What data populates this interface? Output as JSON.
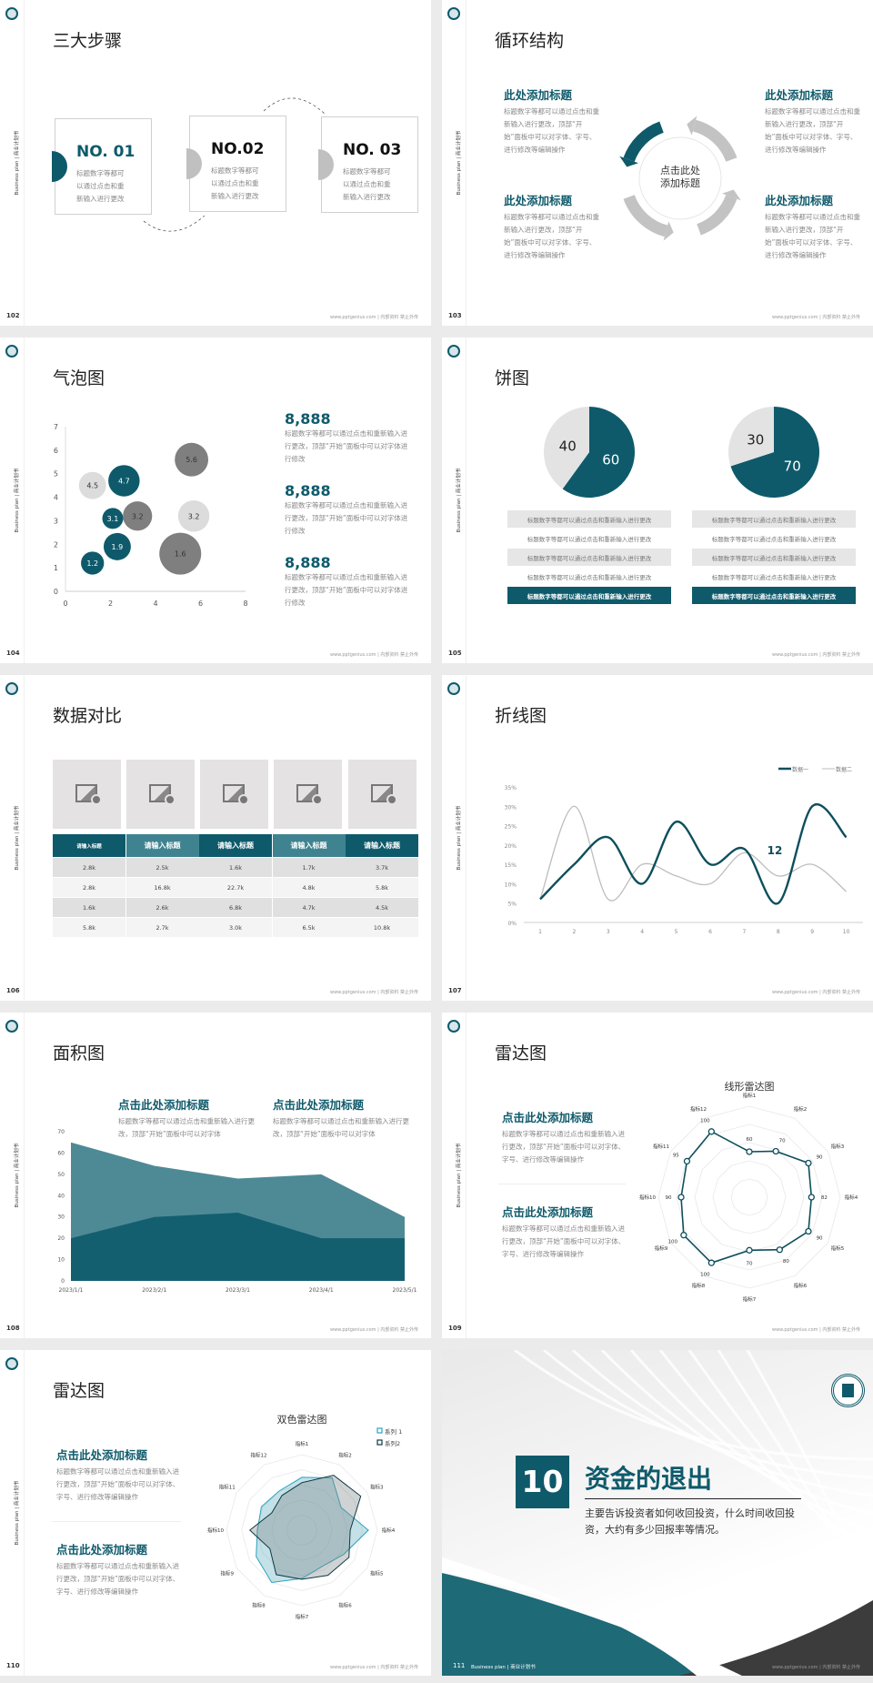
{
  "common": {
    "sidebar_text": "Business plan | 商业计划书",
    "footer": "www.pptgenius.com | 内部资料 禁止外传",
    "colors": {
      "teal": "#0e5a6b",
      "teal_light": "#4e8a96",
      "gray_light": "#dcdcdc",
      "gray_dark": "#7f7f7f",
      "background": "#ebebeb"
    }
  },
  "slides": [
    {
      "type": "steps",
      "page": "102",
      "title": "三大步骤",
      "steps": [
        {
          "label": "NO. 01",
          "lines": [
            "标题数字等都可",
            "以通过点击和重",
            "新输入进行更改"
          ],
          "active": true
        },
        {
          "label": "NO.02",
          "lines": [
            "标题数字等都可",
            "以通过点击和重",
            "新输入进行更改"
          ],
          "active": false
        },
        {
          "label": "NO. 03",
          "lines": [
            "标题数字等都可",
            "以通过点击和重",
            "新输入进行更改"
          ],
          "active": false
        }
      ]
    },
    {
      "type": "cycle",
      "page": "103",
      "title": "循环结构",
      "center": [
        "点击此处",
        "添加标题"
      ],
      "blocks": [
        {
          "title": "此处添加标题",
          "text": "标题数字等都可以通过点击和重新输入进行更改，顶部“开始”面板中可以对字体、字号、进行修改等编辑操作"
        },
        {
          "title": "此处添加标题",
          "text": "标题数字等都可以通过点击和重新输入进行更改，顶部“开始”面板中可以对字体、字号、进行修改等编辑操作"
        },
        {
          "title": "此处添加标题",
          "text": "标题数字等都可以通过点击和重新输入进行更改，顶部“开始”面板中可以对字体、字号、进行修改等编辑操作"
        },
        {
          "title": "此处添加标题",
          "text": "标题数字等都可以通过点击和重新输入进行更改，顶部“开始”面板中可以对字体、字号、进行修改等编辑操作"
        }
      ]
    },
    {
      "type": "bubble",
      "page": "104",
      "title": "气泡图",
      "stats": [
        {
          "value": "8,888",
          "text": "标题数字等都可以通过点击和重新输入进行更改，顶部“开始”面板中可以对字体进行修改"
        },
        {
          "value": "8,888",
          "text": "标题数字等都可以通过点击和重新输入进行更改，顶部“开始”面板中可以对字体进行修改"
        },
        {
          "value": "8,888",
          "text": "标题数字等都可以通过点击和重新输入进行更改，顶部“开始”面板中可以对字体进行修改"
        }
      ]
    },
    {
      "type": "pie",
      "page": "105",
      "title": "饼图",
      "rows": [
        "标题数字等都可以通过点击和重新输入进行更改",
        "标题数字等都可以通过点击和重新输入进行更改",
        "标题数字等都可以通过点击和重新输入进行更改",
        "标题数字等都可以通过点击和重新输入进行更改",
        "标题数字等都可以通过点击和重新输入进行更改"
      ]
    },
    {
      "type": "table",
      "page": "106",
      "title": "数据对比",
      "headers": [
        "请输入标题",
        "请输入标题",
        "请输入标题",
        "请输入标题",
        "请输入标题"
      ],
      "rows": [
        [
          "2.8k",
          "2.5k",
          "1.6k",
          "1.7k",
          "3.7k"
        ],
        [
          "2.8k",
          "16.8k",
          "22.7k",
          "4.8k",
          "5.8k"
        ],
        [
          "1.6k",
          "2.6k",
          "6.8k",
          "4.7k",
          "4.5k"
        ],
        [
          "5.8k",
          "2.7k",
          "3.0k",
          "6.5k",
          "10.8k"
        ]
      ],
      "image_icon": "image-add-icon"
    },
    {
      "type": "line",
      "page": "107",
      "title": "折线图",
      "annotation": "12"
    },
    {
      "type": "area",
      "page": "108",
      "title": "面积图",
      "blocks": [
        {
          "title": "点击此处添加标题",
          "text": "标题数字等都可以通过点击和重新输入进行更改，顶部“开始”面板中可以对字体"
        },
        {
          "title": "点击此处添加标题",
          "text": "标题数字等都可以通过点击和重新输入进行更改，顶部“开始”面板中可以对字体"
        }
      ]
    },
    {
      "type": "radar1",
      "page": "109",
      "title": "雷达图",
      "blocks": [
        {
          "title": "点击此处添加标题",
          "text": "标题数字等都可以通过点击和重新输入进行更改，顶部“开始”面板中可以对字体、字号、进行修改等编辑操作"
        },
        {
          "title": "点击此处添加标题",
          "text": "标题数字等都可以通过点击和重新输入进行更改，顶部“开始”面板中可以对字体、字号、进行修改等编辑操作"
        }
      ]
    },
    {
      "type": "radar2",
      "page": "110",
      "title": "雷达图",
      "blocks": [
        {
          "title": "点击此处添加标题",
          "text": "标题数字等都可以通过点击和重新输入进行更改，顶部“开始”面板中可以对字体、字号、进行修改等编辑操作"
        },
        {
          "title": "点击此处添加标题",
          "text": "标题数字等都可以通过点击和重新输入进行更改，顶部“开始”面板中可以对字体、字号、进行修改等编辑操作"
        }
      ]
    },
    {
      "type": "section",
      "page": "111",
      "number": "10",
      "title": "资金的退出",
      "text": "主要告诉投资者如何收回投资，什么时间收回投资，大约有多少回报率等情况。",
      "footer_left": "Business plan | 商业计划书"
    }
  ],
  "chart_data": [
    {
      "type": "scatter",
      "subtype": "bubble",
      "xlim": [
        0,
        8
      ],
      "ylim": [
        0,
        7
      ],
      "xticks": [
        0,
        2,
        4,
        6,
        8
      ],
      "yticks": [
        0,
        1,
        2,
        3,
        4,
        5,
        6,
        7
      ],
      "points": [
        {
          "x": 1.2,
          "y": 4.5,
          "size": 6.5,
          "label": "4.5",
          "color": "#dcdcdc"
        },
        {
          "x": 2.6,
          "y": 4.7,
          "size": 7.5,
          "label": "4.7",
          "color": "#0e5a6b"
        },
        {
          "x": 2.1,
          "y": 3.1,
          "size": 5,
          "label": "3.1",
          "color": "#0e5a6b"
        },
        {
          "x": 3.2,
          "y": 3.2,
          "size": 7,
          "label": "3.2",
          "color": "#7f7f7f"
        },
        {
          "x": 5.6,
          "y": 5.6,
          "size": 8,
          "label": "5.6",
          "color": "#7f7f7f"
        },
        {
          "x": 5.7,
          "y": 3.2,
          "size": 7.5,
          "label": "3.2",
          "color": "#dcdcdc"
        },
        {
          "x": 5.1,
          "y": 1.6,
          "size": 10,
          "label": "1.6",
          "color": "#7f7f7f"
        },
        {
          "x": 2.3,
          "y": 1.9,
          "size": 6.5,
          "label": "1.9",
          "color": "#0e5a6b"
        },
        {
          "x": 1.2,
          "y": 1.2,
          "size": 5.5,
          "label": "1.2",
          "color": "#0e5a6b"
        }
      ]
    },
    {
      "type": "pie",
      "values": [
        60,
        40
      ],
      "labels": [
        "60",
        "40"
      ],
      "colors": [
        "#0e5a6b",
        "#e3e3e3"
      ]
    },
    {
      "type": "pie",
      "values": [
        70,
        30
      ],
      "labels": [
        "70",
        "30"
      ],
      "colors": [
        "#0e5a6b",
        "#e3e3e3"
      ]
    },
    {
      "type": "line",
      "smooth": true,
      "categories": [
        "1",
        "2",
        "3",
        "4",
        "5",
        "6",
        "7",
        "8",
        "9",
        "10"
      ],
      "ylim": [
        0,
        35
      ],
      "yticks": [
        "0%",
        "5%",
        "10%",
        "15%",
        "20%",
        "25%",
        "30%",
        "35%"
      ],
      "legend": "top-right",
      "series": [
        {
          "name": "数据一",
          "values": [
            6,
            15,
            22,
            10,
            26,
            15,
            19,
            5,
            30,
            22
          ],
          "color": "#0e4f5c"
        },
        {
          "name": "数据二",
          "values": [
            6,
            30,
            6,
            15,
            12,
            10,
            18,
            12,
            15,
            8
          ],
          "color": "#bdbdbd"
        }
      ]
    },
    {
      "type": "area",
      "categories": [
        "2023/1/1",
        "2023/2/1",
        "2023/3/1",
        "2023/4/1",
        "2023/5/1"
      ],
      "ylim": [
        0,
        70
      ],
      "yticks": [
        0,
        10,
        20,
        30,
        40,
        50,
        60,
        70
      ],
      "series": [
        {
          "values": [
            65,
            54,
            48,
            50,
            30
          ],
          "color": "#4e8a96"
        },
        {
          "values": [
            20,
            30,
            32,
            20,
            20
          ],
          "color": "#135f70"
        }
      ]
    },
    {
      "type": "radar",
      "title": "线形雷达图",
      "max": 120,
      "axes": [
        "指标1",
        "指标2",
        "指标3",
        "指标4",
        "指标5",
        "指标6",
        "指标7",
        "指标8",
        "指标9",
        "指标10",
        "指标11",
        "指标12"
      ],
      "series": [
        {
          "values": [
            60,
            70,
            90,
            82,
            90,
            80,
            70,
            100,
            100,
            90,
            95,
            100
          ],
          "color": "#0e4f5c"
        }
      ]
    },
    {
      "type": "radar",
      "title": "双色雷达图",
      "max": 100,
      "legend": "top-right",
      "axes": [
        "指标1",
        "指标2",
        "指标3",
        "指标4",
        "指标5",
        "指标6",
        "指标7",
        "指标8",
        "指标9",
        "指标10",
        "指标11",
        "指标12"
      ],
      "series": [
        {
          "name": "系列 1",
          "values": [
            70,
            80,
            60,
            88,
            64,
            55,
            64,
            80,
            70,
            59,
            62,
            60
          ],
          "color": "#2aa3c0"
        },
        {
          "name": "系列2",
          "values": [
            63,
            84,
            90,
            64,
            72,
            69,
            65,
            68,
            49,
            69,
            46,
            53
          ],
          "color": "#0e3a44"
        }
      ]
    }
  ]
}
